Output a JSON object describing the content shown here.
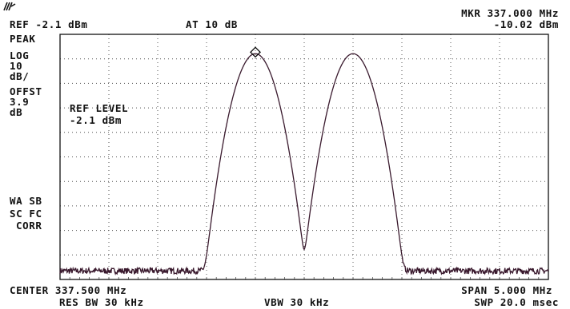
{
  "header": {
    "ref": "REF -2.1 dBm",
    "atten": "AT 10 dB",
    "marker_freq": "MKR 337.000 MHz",
    "marker_level": "-10.02 dBm"
  },
  "side": {
    "lines": [
      "PEAK",
      "LOG",
      "10",
      "dB/",
      "OFFST",
      "3.9",
      "dB"
    ],
    "lower_lines": [
      "WA SB",
      "SC FC",
      "CORR"
    ]
  },
  "annotation": {
    "line1": "REF LEVEL",
    "line2": "-2.1 dBm"
  },
  "footer": {
    "center": "CENTER 337.500 MHz",
    "span": "SPAN 5.000 MHz",
    "rbw": "RES BW 30 kHz",
    "vbw": "VBW 30 kHz",
    "sweep": "SWP 20.0 msec"
  },
  "chart_data": {
    "type": "line",
    "title": "",
    "xlabel": "",
    "ylabel": "",
    "x_unit": "MHz",
    "y_unit": "dBm",
    "xlim": [
      335.0,
      340.0
    ],
    "ylim": [
      -102.1,
      -2.1
    ],
    "grid": true,
    "x_divisions": 10,
    "y_divisions": 10,
    "marker": {
      "x": 337.0,
      "y": -10.02
    },
    "series": [
      {
        "peaks": [
          {
            "x": 337.0,
            "y": -10.0,
            "halfwidth_mhz": 0.19
          },
          {
            "x": 338.0,
            "y": -10.0,
            "halfwidth_mhz": 0.19
          }
        ],
        "noise_floor": -98.6,
        "noise_pp_db": 2.5
      }
    ]
  },
  "colors": {
    "trace": "#3a1a2e",
    "grid": "#555555",
    "border": "#111111",
    "text": "#111111"
  }
}
